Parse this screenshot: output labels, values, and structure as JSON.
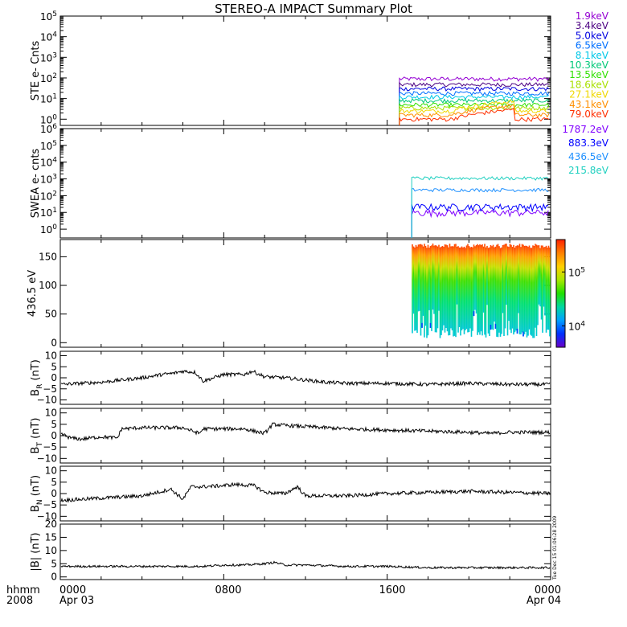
{
  "title": "STEREO-A IMPACT Summary Plot",
  "footer": {
    "unit_label": "hhmm",
    "year": "2008",
    "ticks": [
      {
        "time": "0000",
        "date": "Apr 03",
        "hour": 0
      },
      {
        "time": "0800",
        "date": "",
        "hour": 8
      },
      {
        "time": "1600",
        "date": "",
        "hour": 16
      },
      {
        "time": "0000",
        "date": "Apr 04",
        "hour": 24
      }
    ],
    "timestamp": "Tue Dec 15 01:06:28 2009"
  },
  "colors": {
    "axes": "#000000",
    "background": "#ffffff"
  },
  "chart_data": [
    {
      "id": "ste",
      "type": "line",
      "ylabel": "STE e- Cnts",
      "yscale": "log",
      "ylim": [
        0.5,
        100000
      ],
      "y_tick_labels": [
        "10^0",
        "10^1",
        "10^2",
        "10^3",
        "10^4",
        "10^5"
      ],
      "xlim": [
        0,
        24
      ],
      "x_unit": "hours",
      "data_start_hour": 16.6,
      "legend_position": "right",
      "series": [
        {
          "name": "1.9keV",
          "color": "#9400d3",
          "level": 90
        },
        {
          "name": "3.4keV",
          "color": "#4b0082",
          "level": 48
        },
        {
          "name": "5.0keV",
          "color": "#0000e0",
          "level": 30
        },
        {
          "name": "6.5keV",
          "color": "#0070ff",
          "level": 18
        },
        {
          "name": "8.1keV",
          "color": "#00c8e8",
          "level": 12
        },
        {
          "name": "10.3keV",
          "color": "#00c878",
          "level": 8
        },
        {
          "name": "13.5keV",
          "color": "#30e000",
          "level": 5
        },
        {
          "name": "18.6keV",
          "color": "#a8e000",
          "level": 3.5
        },
        {
          "name": "27.1keV",
          "color": "#f0d800",
          "level": 2.5
        },
        {
          "name": "43.1keV",
          "color": "#ff9000",
          "level": 1.6
        },
        {
          "name": "79.0keV",
          "color": "#ff3000",
          "level": 1.0
        }
      ]
    },
    {
      "id": "swea",
      "type": "line",
      "ylabel": "SWEA e- cnts",
      "yscale": "log",
      "ylim": [
        0.3,
        1000000
      ],
      "y_tick_labels": [
        "10^0",
        "10^1",
        "10^2",
        "10^3",
        "10^4",
        "10^5",
        "10^6"
      ],
      "xlim": [
        0,
        24
      ],
      "x_unit": "hours",
      "data_start_hour": 17.2,
      "legend_position": "right",
      "series": [
        {
          "name": "1787.2eV",
          "color": "#8000ff",
          "level": 10
        },
        {
          "name": "883.3eV",
          "color": "#0000ff",
          "level": 22
        },
        {
          "name": "436.5eV",
          "color": "#1e90ff",
          "level": 220
        },
        {
          "name": "215.8eV",
          "color": "#20d0c0",
          "level": 1100
        }
      ]
    },
    {
      "id": "pad",
      "type": "heatmap",
      "ylabel": "436.5 eV",
      "ylim": [
        -8,
        180
      ],
      "y_ticks": [
        0,
        50,
        100,
        150
      ],
      "xlim": [
        0,
        24
      ],
      "x_unit": "hours",
      "data_start_hour": 17.2,
      "colorbar": {
        "scale": "log",
        "range": [
          4000,
          400000
        ],
        "tick_values": [
          10000,
          100000
        ],
        "tick_labels": [
          "10^4",
          "10^5"
        ]
      }
    },
    {
      "id": "br",
      "type": "line",
      "ylabel_base": "B",
      "ylabel_sub": "R",
      "ylabel_unit": " (nT)",
      "ylim": [
        -12,
        12
      ],
      "y_ticks": [
        10,
        5,
        0,
        -5,
        -10
      ],
      "xlim": [
        0,
        24
      ],
      "x_unit": "hours",
      "series": [
        {
          "name": "",
          "color": "#000000",
          "x": [
            0,
            1,
            2,
            3,
            4,
            5,
            5.5,
            6,
            6.6,
            7,
            8,
            9,
            9.4,
            10,
            11,
            12,
            13,
            14,
            16,
            18,
            20,
            22,
            24
          ],
          "y": [
            -3,
            -2.5,
            -2,
            -1,
            0,
            1.5,
            2,
            3,
            2.5,
            -1.5,
            1.5,
            1.5,
            3,
            0.5,
            0,
            -1,
            -2,
            -2.5,
            -2.5,
            -3,
            -2.5,
            -3,
            -3
          ]
        }
      ]
    },
    {
      "id": "bt",
      "type": "line",
      "ylabel_base": "B",
      "ylabel_sub": "T",
      "ylabel_unit": " (nT)",
      "ylim": [
        -12,
        12
      ],
      "y_ticks": [
        10,
        5,
        0,
        -5,
        -10
      ],
      "xlim": [
        0,
        24
      ],
      "x_unit": "hours",
      "series": [
        {
          "name": "",
          "color": "#000000",
          "x": [
            0,
            0.5,
            1,
            2,
            2.8,
            3,
            4,
            5,
            6,
            6.8,
            7,
            8,
            9,
            10,
            10.4,
            11,
            12,
            13,
            14,
            16,
            18,
            20,
            21,
            22,
            24
          ],
          "y": [
            1,
            -1,
            -1.5,
            -0.5,
            -1,
            3,
            3.5,
            3.5,
            3.5,
            1,
            3,
            3,
            3,
            1,
            5,
            4.5,
            4,
            3.5,
            3,
            2.5,
            2,
            1.5,
            1,
            1.5,
            1.5
          ]
        }
      ]
    },
    {
      "id": "bn",
      "type": "line",
      "ylabel_base": "B",
      "ylabel_sub": "N",
      "ylabel_unit": " (nT)",
      "ylim": [
        -12,
        12
      ],
      "y_ticks": [
        10,
        5,
        0,
        -5,
        -10
      ],
      "xlim": [
        0,
        24
      ],
      "x_unit": "hours",
      "series": [
        {
          "name": "",
          "color": "#000000",
          "x": [
            0,
            1,
            2,
            3,
            4,
            5,
            5.4,
            6,
            6.4,
            7,
            8,
            8.5,
            9.5,
            10,
            11,
            11.6,
            12,
            13,
            14,
            16,
            18,
            20,
            22,
            24
          ],
          "y": [
            -3,
            -2.5,
            -2,
            -1.5,
            -1,
            1,
            2,
            -2.5,
            3,
            3,
            3.5,
            4,
            3.5,
            0.5,
            0,
            3,
            -1,
            -1,
            -1,
            0,
            0.5,
            1,
            0.5,
            0
          ]
        }
      ]
    },
    {
      "id": "bmag",
      "type": "line",
      "ylabel": "|B| (nT)",
      "ylim": [
        -1,
        20
      ],
      "y_ticks": [
        20,
        15,
        10,
        5,
        0
      ],
      "xlim": [
        0,
        24
      ],
      "x_unit": "hours",
      "series": [
        {
          "name": "",
          "color": "#000000",
          "x": [
            0,
            2,
            4,
            6,
            7,
            8,
            9,
            10,
            10.5,
            11,
            12,
            14,
            16,
            18,
            20,
            22,
            24
          ],
          "y": [
            4,
            4,
            4,
            4,
            4,
            4.5,
            4.5,
            5,
            5.5,
            4.5,
            4.5,
            4,
            4,
            3.5,
            3.5,
            3.5,
            3.5
          ]
        }
      ]
    }
  ]
}
